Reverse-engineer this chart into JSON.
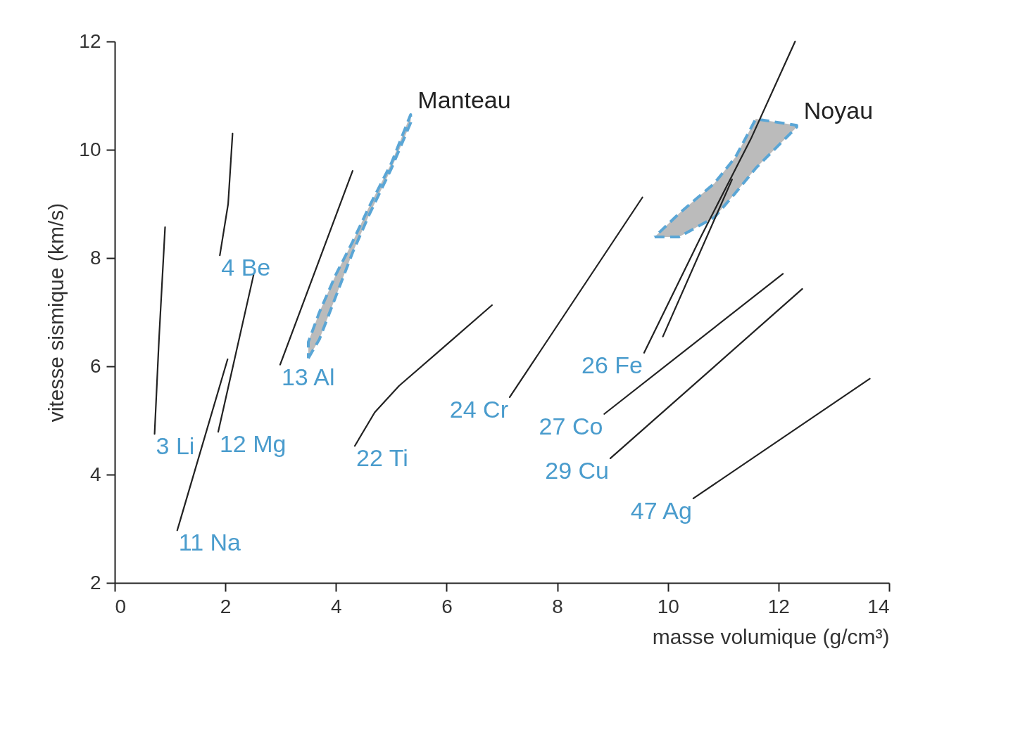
{
  "chart_data": {
    "type": "line",
    "xlabel": "masse volumique (g/cm³)",
    "ylabel": "vitesse sismique (km/s)",
    "xlim": [
      0,
      14
    ],
    "xticks": [
      0,
      2,
      4,
      6,
      8,
      10,
      12,
      14
    ],
    "ylim": [
      2,
      12
    ],
    "yticks": [
      2,
      4,
      6,
      8,
      10,
      12
    ],
    "line_style": "solid",
    "series": [
      {
        "color": "#222222",
        "x": [
          0.72,
          0.8,
          0.91
        ],
        "values": [
          4.75,
          6.5,
          8.57
        ]
      },
      {
        "color": "#222222",
        "x": [
          1.9,
          2.05,
          2.13
        ],
        "values": [
          8.05,
          9.0,
          10.3
        ]
      },
      {
        "color": "#222222",
        "x": [
          1.13,
          2.04
        ],
        "values": [
          2.97,
          6.13
        ]
      },
      {
        "color": "#222222",
        "x": [
          1.87,
          2.51
        ],
        "values": [
          4.79,
          7.69
        ]
      },
      {
        "color": "#222222",
        "x": [
          2.99,
          4.3
        ],
        "values": [
          6.03,
          9.61
        ]
      },
      {
        "color": "#222222",
        "x": [
          4.34,
          4.7,
          5.14,
          6.0,
          6.82
        ],
        "values": [
          4.53,
          5.15,
          5.64,
          6.4,
          7.13
        ]
      },
      {
        "color": "#222222",
        "x": [
          7.14,
          9.54
        ],
        "values": [
          5.43,
          9.12
        ]
      },
      {
        "color": "#222222",
        "x": [
          9.57,
          10.6,
          11.5,
          12.3
        ],
        "values": [
          6.25,
          8.4,
          10.2,
          12.0
        ]
      },
      {
        "color": "#222222",
        "x": [
          9.91,
          11.16
        ],
        "values": [
          6.55,
          9.45
        ]
      },
      {
        "color": "#222222",
        "x": [
          8.85,
          12.08
        ],
        "values": [
          5.12,
          7.71
        ]
      },
      {
        "color": "#222222",
        "x": [
          8.96,
          12.43
        ],
        "values": [
          4.3,
          7.43
        ]
      },
      {
        "color": "#222222",
        "x": [
          10.46,
          13.65
        ],
        "values": [
          3.56,
          5.77
        ]
      },
      {
        "type": "area",
        "color": "#b4b4b4",
        "line_style": "dashed",
        "x": [
          3.5,
          3.7,
          4.0,
          4.3,
          4.6,
          5.0,
          5.35,
          5.35,
          5.0,
          4.6,
          4.3,
          4.0,
          3.7,
          3.5
        ],
        "values": [
          6.15,
          6.5,
          7.3,
          8.1,
          8.8,
          9.65,
          10.5,
          10.65,
          9.75,
          8.95,
          8.3,
          7.7,
          7.0,
          6.45
        ]
      },
      {
        "type": "area",
        "color": "#b4b4b4",
        "line_style": "dashed",
        "x": [
          9.76,
          10.2,
          10.84,
          11.22,
          11.59,
          12.33,
          12.33,
          11.59,
          11.22,
          10.84,
          10.2
        ],
        "values": [
          8.39,
          8.39,
          8.75,
          9.2,
          9.66,
          10.42,
          10.45,
          10.57,
          9.86,
          9.38,
          8.82
        ]
      }
    ],
    "annotations": [
      {
        "text": "3 Li",
        "x": 0.72,
        "y": 4.75
      },
      {
        "text": "4 Be",
        "x": 1.9,
        "y": 8.05
      },
      {
        "text": "11 Na",
        "x": 1.13,
        "y": 2.97
      },
      {
        "text": "12 Mg",
        "x": 1.87,
        "y": 4.79
      },
      {
        "text": "13 Al",
        "x": 2.99,
        "y": 6.03
      },
      {
        "text": "22 Ti",
        "x": 4.34,
        "y": 4.53
      },
      {
        "text": "24 Cr",
        "x": 7.14,
        "y": 5.43
      },
      {
        "text": "27 Co",
        "x": 8.85,
        "y": 5.12
      },
      {
        "text": "26 Fe",
        "x": 9.57,
        "y": 6.25
      },
      {
        "text": "29 Cu",
        "x": 8.96,
        "y": 4.3
      },
      {
        "text": "47 Ag",
        "x": 10.46,
        "y": 3.56
      },
      {
        "text": "Manteau",
        "x": 5.35,
        "y": 10.65
      },
      {
        "text": "Noyau",
        "x": 12.33,
        "y": 10.45
      }
    ]
  }
}
